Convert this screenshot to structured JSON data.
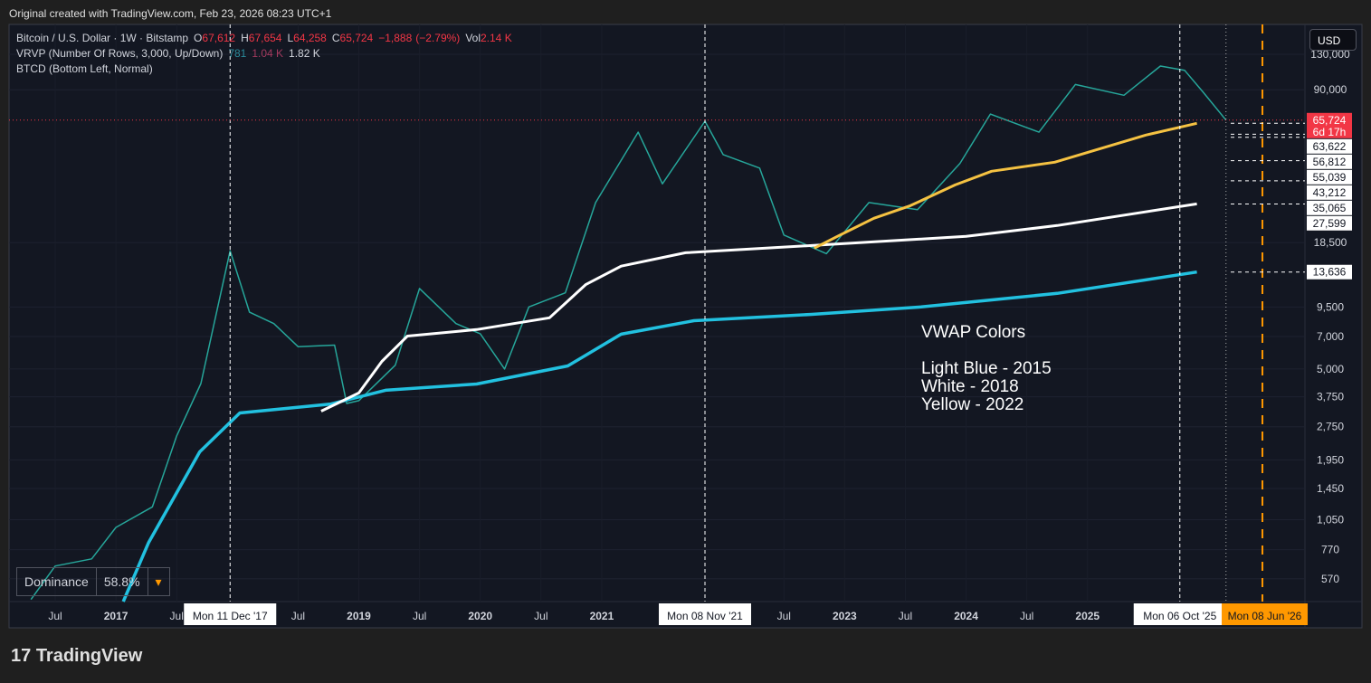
{
  "source_note": "Original created with TradingView.com, Feb 23, 2026 08:23 UTC+1",
  "brand": "TradingView",
  "chart_data": {
    "type": "line",
    "log_scale": true,
    "grid": true,
    "currency": "USD",
    "quote": [
      {
        "key": "O",
        "value": 67612,
        "label": "67,612"
      },
      {
        "key": "H",
        "value": 67654,
        "label": "67,654"
      },
      {
        "key": "L",
        "value": 64258,
        "label": "64,258"
      },
      {
        "key": "C",
        "value": 65724,
        "label": "65,724"
      }
    ],
    "change": {
      "value": -1888,
      "label": "−1,888",
      "pct": -2.79,
      "pct_label": "(−2.79%)"
    },
    "volume": {
      "key": "Vol",
      "value": 2140,
      "label": "2.14 K"
    },
    "indicators": [
      "VRVP (Number Of Rows, 3,000, Up/Down)",
      "BTCD (Bottom Left, Normal)"
    ],
    "vrvp_values": [
      781,
      {
        "value": 1040,
        "label": "1.04 K"
      },
      {
        "value": 1820,
        "label": "1.82 K"
      }
    ],
    "annotation": "VWAP Colors",
    "dominance": {
      "label": "Dominance",
      "value": 58.8,
      "value_label": "58.8%"
    },
    "xlim": [
      2016.12,
      2026.79
    ],
    "xticks": [
      {
        "value": 2016.5,
        "label": "Jul"
      },
      {
        "value": 2017,
        "label": "2017"
      },
      {
        "value": 2017.5,
        "label": "Jul"
      },
      {
        "value": 2018.5,
        "label": "Jul"
      },
      {
        "value": 2019,
        "label": "2019"
      },
      {
        "value": 2019.5,
        "label": "Jul"
      },
      {
        "value": 2020,
        "label": "2020"
      },
      {
        "value": 2020.5,
        "label": "Jul"
      },
      {
        "value": 2021,
        "label": "2021"
      },
      {
        "value": 2022.5,
        "label": "Jul"
      },
      {
        "value": 2023,
        "label": "2023"
      },
      {
        "value": 2023.5,
        "label": "Jul"
      },
      {
        "value": 2024,
        "label": "2024"
      },
      {
        "value": 2024.5,
        "label": "Jul"
      },
      {
        "value": 2025,
        "label": "2025"
      }
    ],
    "ylim": [
      450,
      177000
    ],
    "yticks": [
      {
        "value": 130000,
        "label": "130,000"
      },
      {
        "value": 90000,
        "label": "90,000"
      },
      {
        "value": 18500,
        "label": "18,500"
      },
      {
        "value": 9500,
        "label": "9,500"
      },
      {
        "value": 7000,
        "label": "7,000"
      },
      {
        "value": 5000,
        "label": "5,000"
      },
      {
        "value": 3750,
        "label": "3,750"
      },
      {
        "value": 2750,
        "label": "2,750"
      },
      {
        "value": 1950,
        "label": "1,950"
      },
      {
        "value": 1450,
        "label": "1,450"
      },
      {
        "value": 1050,
        "label": "1,050"
      },
      {
        "value": 770,
        "label": "770"
      },
      {
        "value": 570,
        "label": "570"
      }
    ],
    "markers": [
      {
        "x": 2017.94,
        "label": "Mon 11 Dec '17",
        "color": "#ffffff"
      },
      {
        "x": 2021.85,
        "label": "Mon 08 Nov '21",
        "color": "#ffffff"
      },
      {
        "x": 2025.76,
        "label": "Mon 06 Oct '25",
        "color": "#ffffff"
      },
      {
        "x": 2026.44,
        "label": "Mon 08 Jun '26",
        "color": "#ff9800"
      }
    ],
    "price_labels": [
      {
        "value": 65724,
        "label": "65,724",
        "countdown": "6d 17h",
        "color": "#f23645"
      },
      {
        "value": 63622,
        "label": "63,622",
        "color": "#ffffff"
      },
      {
        "value": 56812,
        "label": "56,812",
        "color": "#ffffff"
      },
      {
        "value": 55039,
        "label": "55,039",
        "color": "#ffffff"
      },
      {
        "value": 43212,
        "label": "43,212",
        "color": "#ffffff"
      },
      {
        "value": 35065,
        "label": "35,065",
        "color": "#ffffff"
      },
      {
        "value": 27599,
        "label": "27,599",
        "color": "#ffffff"
      },
      {
        "value": 13636,
        "label": "13,636",
        "color": "#ffffff"
      }
    ],
    "series": [
      {
        "name": "Bitcoin / U.S. Dollar · 1W · Bitstamp",
        "color": "#26a69a",
        "width": 1.5,
        "x": [
          2016.3,
          2016.5,
          2016.8,
          2017.0,
          2017.3,
          2017.5,
          2017.7,
          2017.94,
          2018.1,
          2018.3,
          2018.5,
          2018.8,
          2018.9,
          2019.0,
          2019.3,
          2019.5,
          2019.8,
          2020.0,
          2020.2,
          2020.4,
          2020.7,
          2020.95,
          2021.3,
          2021.5,
          2021.85,
          2022.0,
          2022.3,
          2022.5,
          2022.85,
          2023.2,
          2023.6,
          2023.95,
          2024.2,
          2024.6,
          2024.9,
          2025.3,
          2025.6,
          2025.8,
          2025.95,
          2026.14
        ],
        "values": [
          460,
          650,
          700,
          970,
          1200,
          2500,
          4300,
          17000,
          9000,
          8000,
          6300,
          6400,
          3500,
          3600,
          5200,
          11500,
          8000,
          7200,
          5000,
          9500,
          11000,
          28000,
          58000,
          34000,
          65000,
          46000,
          40000,
          20000,
          16500,
          28000,
          26000,
          42000,
          70000,
          58000,
          95000,
          85000,
          115000,
          110000,
          88000,
          65724
        ]
      },
      {
        "name": "Light Blue - 2015",
        "color": "#22c1e0",
        "width": 3.5,
        "x": [
          2017.06,
          2017.27,
          2017.69,
          2018.02,
          2018.77,
          2019.22,
          2019.97,
          2020.72,
          2021.16,
          2021.76,
          2022.73,
          2023.63,
          2024.75,
          2025.9
        ],
        "values": [
          450,
          830,
          2120,
          3170,
          3480,
          4010,
          4280,
          5160,
          7170,
          8240,
          8800,
          9500,
          10940,
          13636
        ]
      },
      {
        "name": "White - 2018",
        "color": "#ffffff",
        "width": 3,
        "x": [
          2018.69,
          2019.0,
          2019.19,
          2019.4,
          2019.97,
          2020.57,
          2020.87,
          2021.16,
          2021.69,
          2022.73,
          2024.0,
          2024.75,
          2025.9
        ],
        "values": [
          3230,
          3900,
          5410,
          7030,
          7520,
          8490,
          12000,
          14500,
          16650,
          17950,
          19720,
          22080,
          27599
        ]
      },
      {
        "name": "Yellow - 2022",
        "color": "#f5c242",
        "width": 3,
        "x": [
          2022.75,
          2022.94,
          2023.24,
          2023.54,
          2023.91,
          2024.21,
          2024.73,
          2025.48,
          2025.9
        ],
        "values": [
          17460,
          19720,
          23780,
          27100,
          33600,
          38700,
          42500,
          56300,
          63622
        ]
      }
    ]
  }
}
